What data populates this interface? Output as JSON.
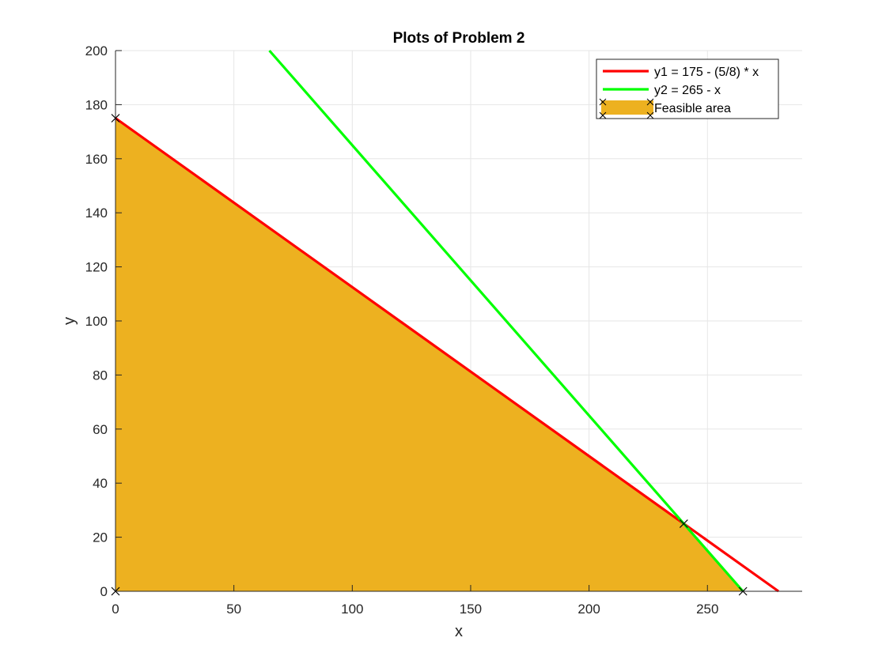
{
  "chart_data": {
    "type": "line",
    "title": "Plots of Problem 2",
    "xlabel": "x",
    "ylabel": "y",
    "xlim": [
      0,
      290
    ],
    "ylim": [
      0,
      200
    ],
    "x_ticks": [
      0,
      50,
      100,
      150,
      200,
      250
    ],
    "y_ticks": [
      0,
      20,
      40,
      60,
      80,
      100,
      120,
      140,
      160,
      180,
      200
    ],
    "grid": true,
    "legend_position": "top-right",
    "series": [
      {
        "name": "y1 = 175 - (5/8) * x",
        "kind": "line",
        "color": "#ff0000",
        "x": [
          0,
          280
        ],
        "y": [
          175,
          0
        ]
      },
      {
        "name": "y2 = 265 - x",
        "kind": "line",
        "color": "#00ff00",
        "x": [
          65,
          265
        ],
        "y": [
          200,
          0
        ]
      },
      {
        "name": "Feasible area",
        "kind": "area",
        "color": "#edb120",
        "x": [
          0,
          0,
          240,
          265
        ],
        "y": [
          0,
          175,
          25,
          0
        ]
      }
    ],
    "markers": {
      "symbol": "x",
      "color": "#000000",
      "points": [
        {
          "x": 0,
          "y": 0
        },
        {
          "x": 0,
          "y": 175
        },
        {
          "x": 240,
          "y": 25
        },
        {
          "x": 265,
          "y": 0
        }
      ]
    }
  }
}
